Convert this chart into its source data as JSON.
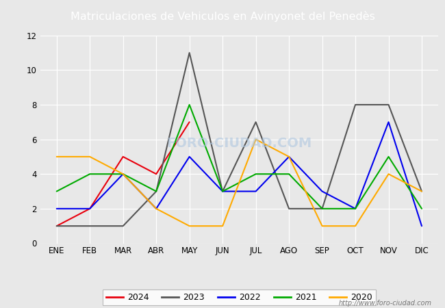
{
  "title": "Matriculaciones de Vehiculos en Avinyonet del Penedès",
  "months": [
    "ENE",
    "FEB",
    "MAR",
    "ABR",
    "MAY",
    "JUN",
    "JUL",
    "AGO",
    "SEP",
    "OCT",
    "NOV",
    "DIC"
  ],
  "series": {
    "2024": {
      "values": [
        1,
        2,
        5,
        4,
        7,
        null,
        null,
        null,
        null,
        null,
        null,
        null
      ],
      "color": "#e8000d",
      "linewidth": 1.5
    },
    "2023": {
      "values": [
        1,
        1,
        1,
        3,
        11,
        3,
        7,
        2,
        2,
        8,
        8,
        3
      ],
      "color": "#555555",
      "linewidth": 1.5
    },
    "2022": {
      "values": [
        2,
        2,
        4,
        2,
        5,
        3,
        3,
        5,
        3,
        2,
        7,
        1
      ],
      "color": "#0000ee",
      "linewidth": 1.5
    },
    "2021": {
      "values": [
        3,
        4,
        4,
        3,
        8,
        3,
        4,
        4,
        2,
        2,
        5,
        2
      ],
      "color": "#00aa00",
      "linewidth": 1.5
    },
    "2020": {
      "values": [
        5,
        5,
        4,
        2,
        1,
        1,
        6,
        5,
        1,
        1,
        4,
        3
      ],
      "color": "#ffaa00",
      "linewidth": 1.5
    }
  },
  "ylim": [
    0,
    12
  ],
  "yticks": [
    0,
    2,
    4,
    6,
    8,
    10,
    12
  ],
  "background_color": "#e8e8e8",
  "plot_background": "#e8e8e8",
  "title_bg_color": "#5b8dd9",
  "title_text_color": "#ffffff",
  "watermark": "FORO-CIUDAD.COM",
  "url": "http://www.foro-ciudad.com",
  "legend_years": [
    "2024",
    "2023",
    "2022",
    "2021",
    "2020"
  ]
}
